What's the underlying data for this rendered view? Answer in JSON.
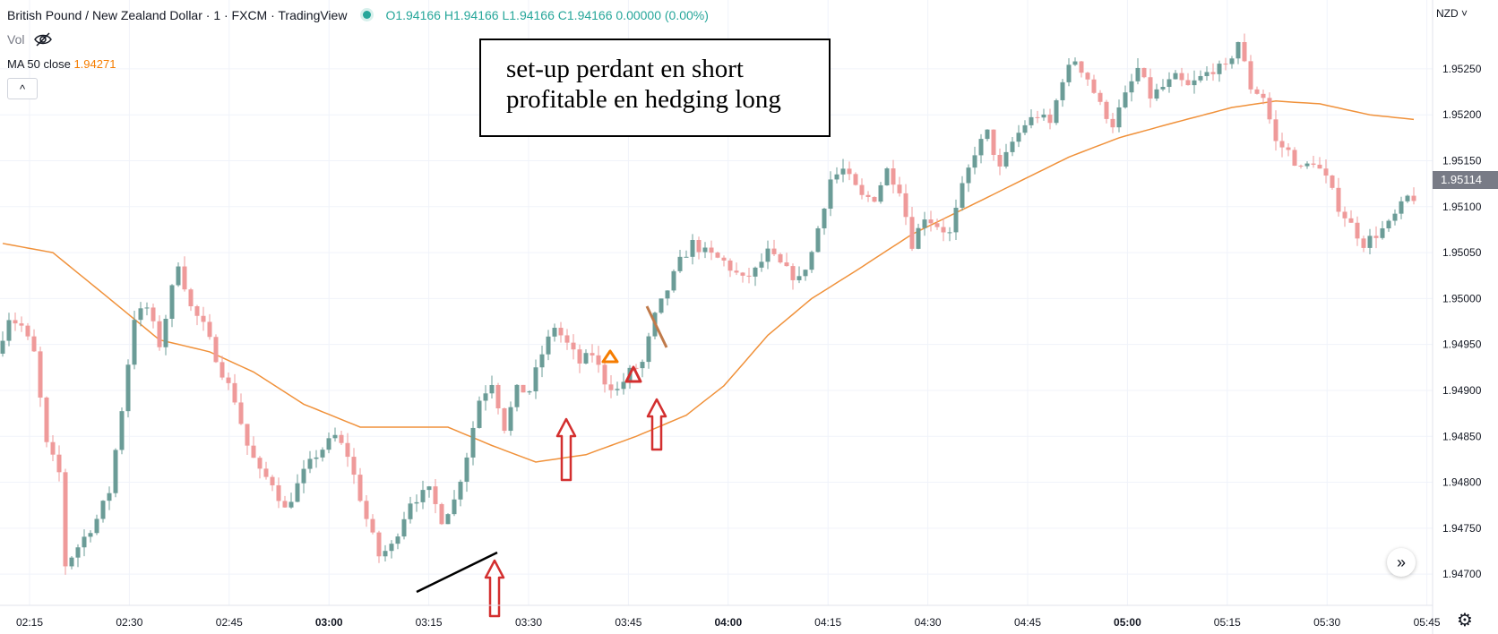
{
  "header": {
    "symbol_title": "British Pound / New Zealand Dollar · 1 · FXCM · TradingView",
    "ohlc": {
      "o_label": "O",
      "o": "1.94166",
      "h_label": "H",
      "h": "1.94166",
      "l_label": "L",
      "l": "1.94166",
      "c_label": "C",
      "c": "1.94166",
      "change": "0.00000 (0.00%)"
    },
    "vol_label": "Vol",
    "ma_label": "MA 50 close",
    "ma_value": "1.94271",
    "collapse_glyph": "^"
  },
  "annotation": {
    "line1": "set-up perdant en short",
    "line2": "profitable en hedging long"
  },
  "price_axis": {
    "currency": "NZD ˅",
    "current_price": "1.95114"
  },
  "scroll_glyph": "»",
  "gear_glyph": "⚙",
  "icons": {
    "status": "market-status-dot-icon",
    "eye": "eye-hidden-icon",
    "scroll": "scroll-to-realtime-icon",
    "settings": "gear-icon"
  },
  "colors": {
    "up": "#6b9c97",
    "down": "#ef9a9a",
    "ma": "#f0913a",
    "arrow": "#d32f2f",
    "text": "#131722",
    "ohlc": "#26a69a"
  },
  "chart_data": {
    "type": "candlestick",
    "symbol": "British Pound / New Zealand Dollar",
    "interval": "1",
    "currency": "NZD",
    "ylim": [
      1.94666,
      1.95325
    ],
    "y_ticks": [
      "1.95250",
      "1.95200",
      "1.95150",
      "1.95100",
      "1.95050",
      "1.95000",
      "1.94950",
      "1.94900",
      "1.94850",
      "1.94800",
      "1.94750",
      "1.94700"
    ],
    "x_ticks": [
      {
        "label": "02:15",
        "bold": false
      },
      {
        "label": "02:30",
        "bold": false
      },
      {
        "label": "02:45",
        "bold": false
      },
      {
        "label": "03:00",
        "bold": true
      },
      {
        "label": "03:15",
        "bold": false
      },
      {
        "label": "03:30",
        "bold": false
      },
      {
        "label": "03:45",
        "bold": false
      },
      {
        "label": "04:00",
        "bold": true
      },
      {
        "label": "04:15",
        "bold": false
      },
      {
        "label": "04:30",
        "bold": false
      },
      {
        "label": "04:45",
        "bold": false
      },
      {
        "label": "05:00",
        "bold": true
      },
      {
        "label": "05:15",
        "bold": false
      },
      {
        "label": "05:30",
        "bold": false
      },
      {
        "label": "05:45",
        "bold": false
      }
    ],
    "grid": true,
    "keypoints": [
      [
        0,
        1.9494
      ],
      [
        2,
        1.9498
      ],
      [
        4,
        1.9497
      ],
      [
        6,
        1.9494
      ],
      [
        8,
        1.9484
      ],
      [
        10,
        1.9481
      ],
      [
        11,
        1.9471
      ],
      [
        13,
        1.9473
      ],
      [
        16,
        1.9476
      ],
      [
        18,
        1.9479
      ],
      [
        20,
        1.9488
      ],
      [
        22,
        1.9498
      ],
      [
        24,
        1.9499
      ],
      [
        26,
        1.9495
      ],
      [
        29,
        1.9504
      ],
      [
        31,
        1.9499
      ],
      [
        33,
        1.9497
      ],
      [
        36,
        1.9492
      ],
      [
        38,
        1.9489
      ],
      [
        40,
        1.9484
      ],
      [
        42,
        1.9481
      ],
      [
        44,
        1.948
      ],
      [
        46,
        1.9477
      ],
      [
        49,
        1.9481
      ],
      [
        51,
        1.9483
      ],
      [
        54,
        1.9485
      ],
      [
        56,
        1.9483
      ],
      [
        59,
        1.9476
      ],
      [
        61,
        1.9472
      ],
      [
        63,
        1.9473
      ],
      [
        66,
        1.9478
      ],
      [
        69,
        1.9479
      ],
      [
        71,
        1.9476
      ],
      [
        73,
        1.9478
      ],
      [
        75,
        1.9483
      ],
      [
        77,
        1.9489
      ],
      [
        79,
        1.9491
      ],
      [
        81,
        1.9486
      ],
      [
        83,
        1.949
      ],
      [
        85,
        1.949
      ],
      [
        87,
        1.9494
      ],
      [
        89,
        1.9497
      ],
      [
        91,
        1.9495
      ],
      [
        93,
        1.9493
      ],
      [
        95,
        1.9494
      ],
      [
        97,
        1.9491
      ],
      [
        99,
        1.949
      ],
      [
        101,
        1.9492
      ],
      [
        103,
        1.9493
      ],
      [
        105,
        1.9498
      ],
      [
        107,
        1.9501
      ],
      [
        109,
        1.9504
      ],
      [
        111,
        1.9506
      ],
      [
        113,
        1.9505
      ],
      [
        116,
        1.9504
      ],
      [
        119,
        1.9502
      ],
      [
        121,
        1.9503
      ],
      [
        123,
        1.9505
      ],
      [
        126,
        1.9503
      ],
      [
        128,
        1.9502
      ],
      [
        130,
        1.9505
      ],
      [
        133,
        1.9513
      ],
      [
        135,
        1.9514
      ],
      [
        138,
        1.9511
      ],
      [
        140,
        1.9511
      ],
      [
        142,
        1.9514
      ],
      [
        144,
        1.9512
      ],
      [
        146,
        1.9506
      ],
      [
        148,
        1.9509
      ],
      [
        150,
        1.9508
      ],
      [
        152,
        1.9507
      ],
      [
        154,
        1.9512
      ],
      [
        156,
        1.9516
      ],
      [
        158,
        1.9518
      ],
      [
        160,
        1.9514
      ],
      [
        162,
        1.9517
      ],
      [
        164,
        1.9519
      ],
      [
        166,
        1.952
      ],
      [
        168,
        1.9519
      ],
      [
        170,
        1.9524
      ],
      [
        172,
        1.9526
      ],
      [
        174,
        1.9524
      ],
      [
        176,
        1.9521
      ],
      [
        178,
        1.9519
      ],
      [
        180,
        1.9522
      ],
      [
        182,
        1.9525
      ],
      [
        184,
        1.9522
      ],
      [
        186,
        1.9523
      ],
      [
        188,
        1.9524
      ],
      [
        190,
        1.9523
      ],
      [
        192,
        1.9524
      ],
      [
        194,
        1.9525
      ],
      [
        196,
        1.9525
      ],
      [
        198,
        1.9528
      ],
      [
        200,
        1.9523
      ],
      [
        202,
        1.9522
      ],
      [
        204,
        1.9517
      ],
      [
        206,
        1.9516
      ],
      [
        208,
        1.9514
      ],
      [
        210,
        1.9515
      ],
      [
        212,
        1.9513
      ],
      [
        214,
        1.951
      ],
      [
        216,
        1.9508
      ],
      [
        218,
        1.9506
      ],
      [
        220,
        1.9507
      ],
      [
        222,
        1.9508
      ],
      [
        224,
        1.951
      ],
      [
        225,
        1.9511
      ]
    ],
    "ma50_keypoints": [
      [
        0,
        1.9506
      ],
      [
        8,
        1.9505
      ],
      [
        17,
        1.95
      ],
      [
        25,
        1.94955
      ],
      [
        33,
        1.94942
      ],
      [
        40,
        1.9492
      ],
      [
        48,
        1.94885
      ],
      [
        57,
        1.9486
      ],
      [
        64,
        1.9486
      ],
      [
        71,
        1.9486
      ],
      [
        78,
        1.9484
      ],
      [
        85,
        1.94822
      ],
      [
        93,
        1.9483
      ],
      [
        101,
        1.9485
      ],
      [
        109,
        1.94873
      ],
      [
        115,
        1.94905
      ],
      [
        122,
        1.9496
      ],
      [
        129,
        1.95
      ],
      [
        136,
        1.9503
      ],
      [
        145,
        1.9507
      ],
      [
        154,
        1.951
      ],
      [
        162,
        1.95127
      ],
      [
        170,
        1.95154
      ],
      [
        178,
        1.95175
      ],
      [
        186,
        1.9519
      ],
      [
        196,
        1.95208
      ],
      [
        203,
        1.95215
      ],
      [
        210,
        1.95212
      ],
      [
        218,
        1.952
      ],
      [
        225,
        1.95195
      ]
    ]
  }
}
